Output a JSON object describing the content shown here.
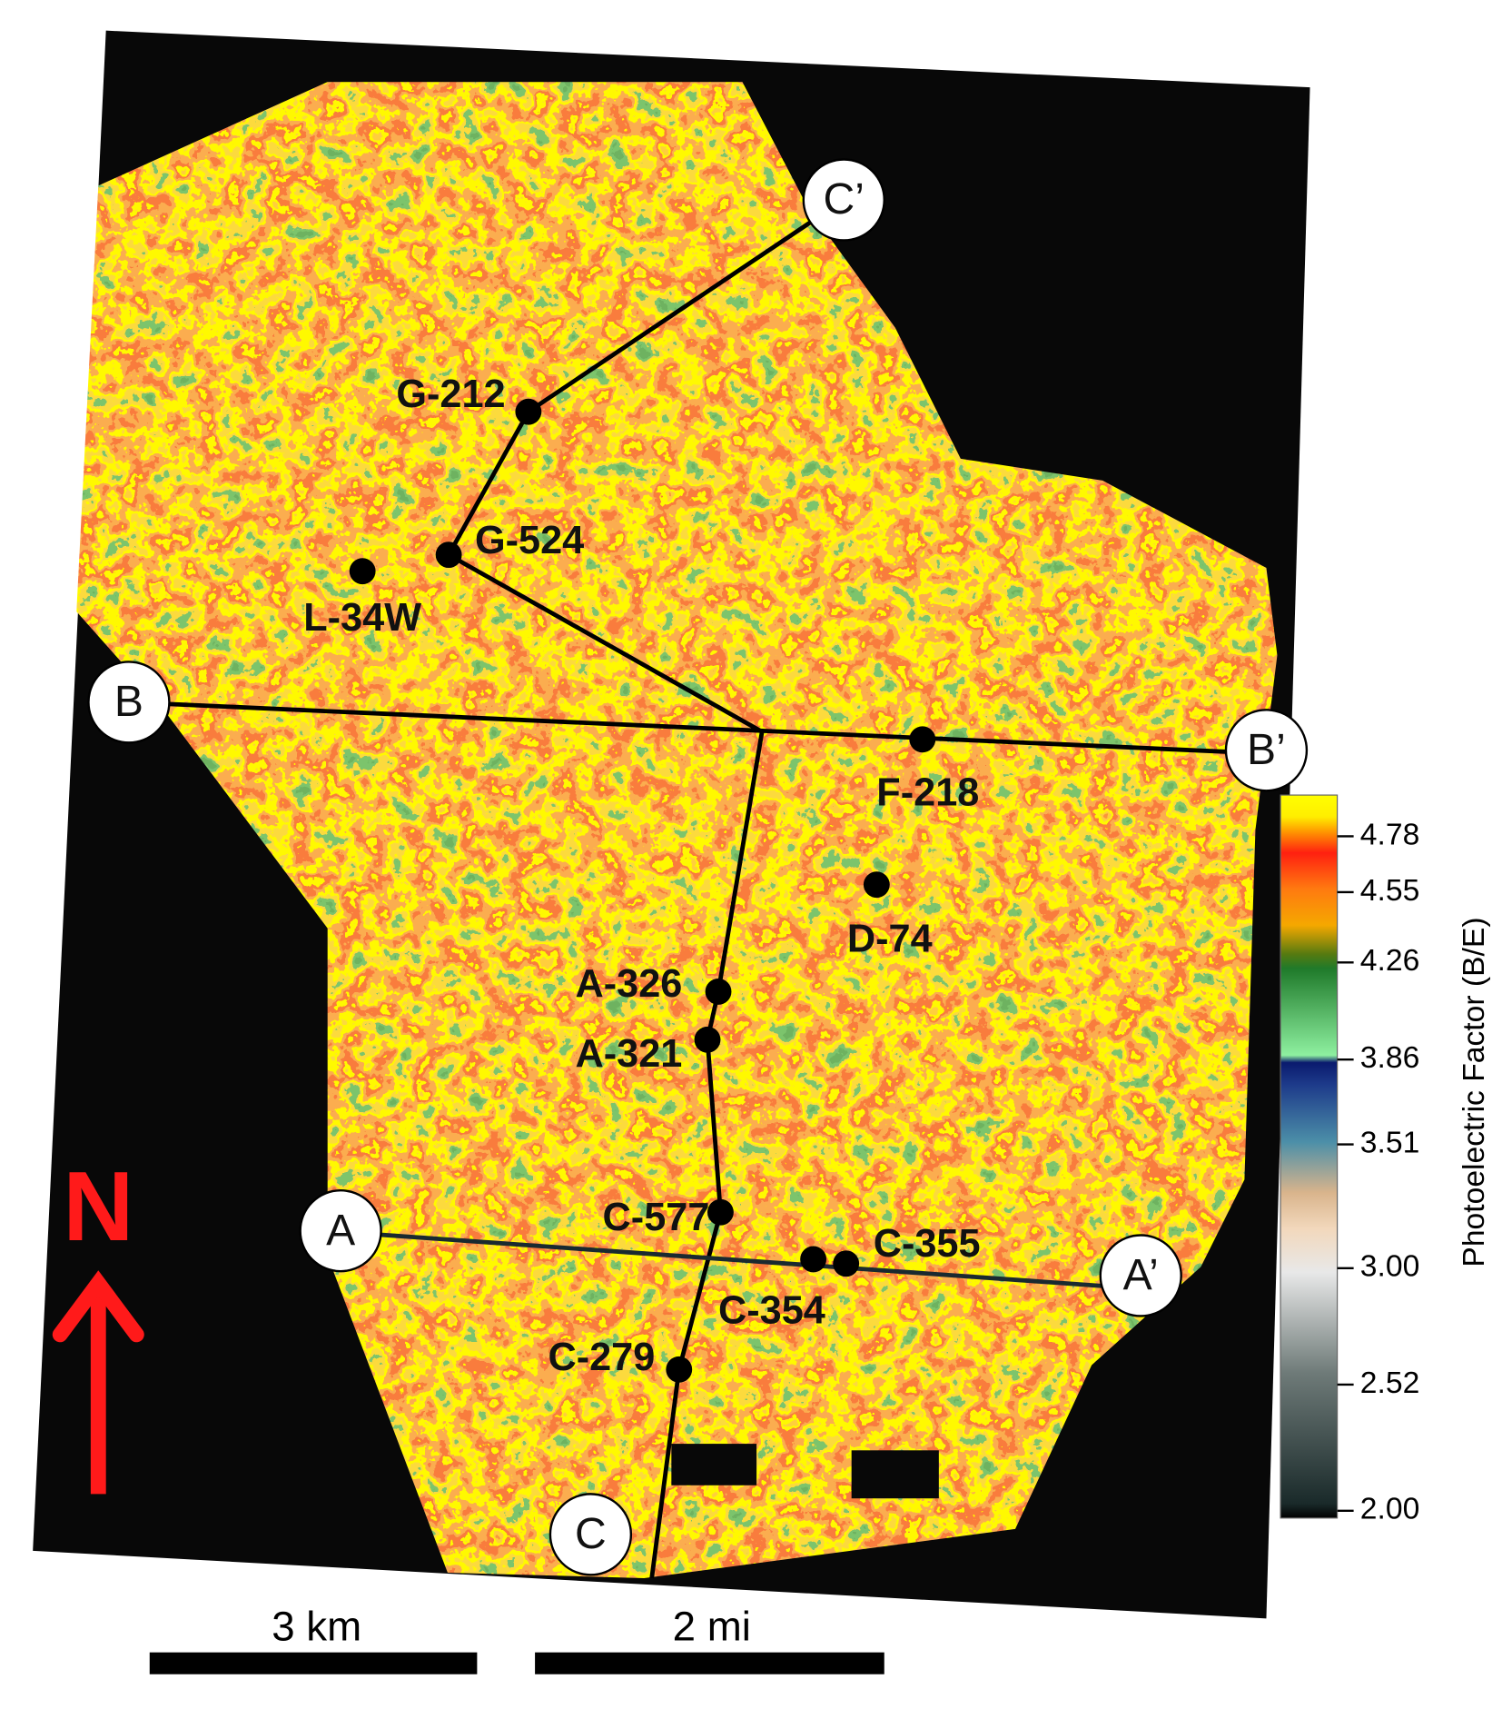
{
  "north": "N",
  "wells": [
    {
      "label": "G-212"
    },
    {
      "label": "G-524"
    },
    {
      "label": "L-34W"
    },
    {
      "label": "F-218"
    },
    {
      "label": "D-74"
    },
    {
      "label": "A-326"
    },
    {
      "label": "A-321"
    },
    {
      "label": "C-577"
    },
    {
      "label": "C-355"
    },
    {
      "label": "C-354"
    },
    {
      "label": "C-279"
    }
  ],
  "section_ends": [
    "A",
    "A’",
    "B",
    "B’",
    "C",
    "C’"
  ],
  "scale_bars": [
    "3 km",
    "2 mi"
  ],
  "colorbar": {
    "label": "Photoelectric Factor (B/E)",
    "lim": [
      1.97,
      4.95
    ],
    "ticks": [
      4.78,
      4.55,
      4.26,
      3.86,
      3.51,
      {
        "value": 3,
        "label": "3.00"
      },
      2.52,
      {
        "value": 2,
        "label": "2.00"
      }
    ]
  }
}
